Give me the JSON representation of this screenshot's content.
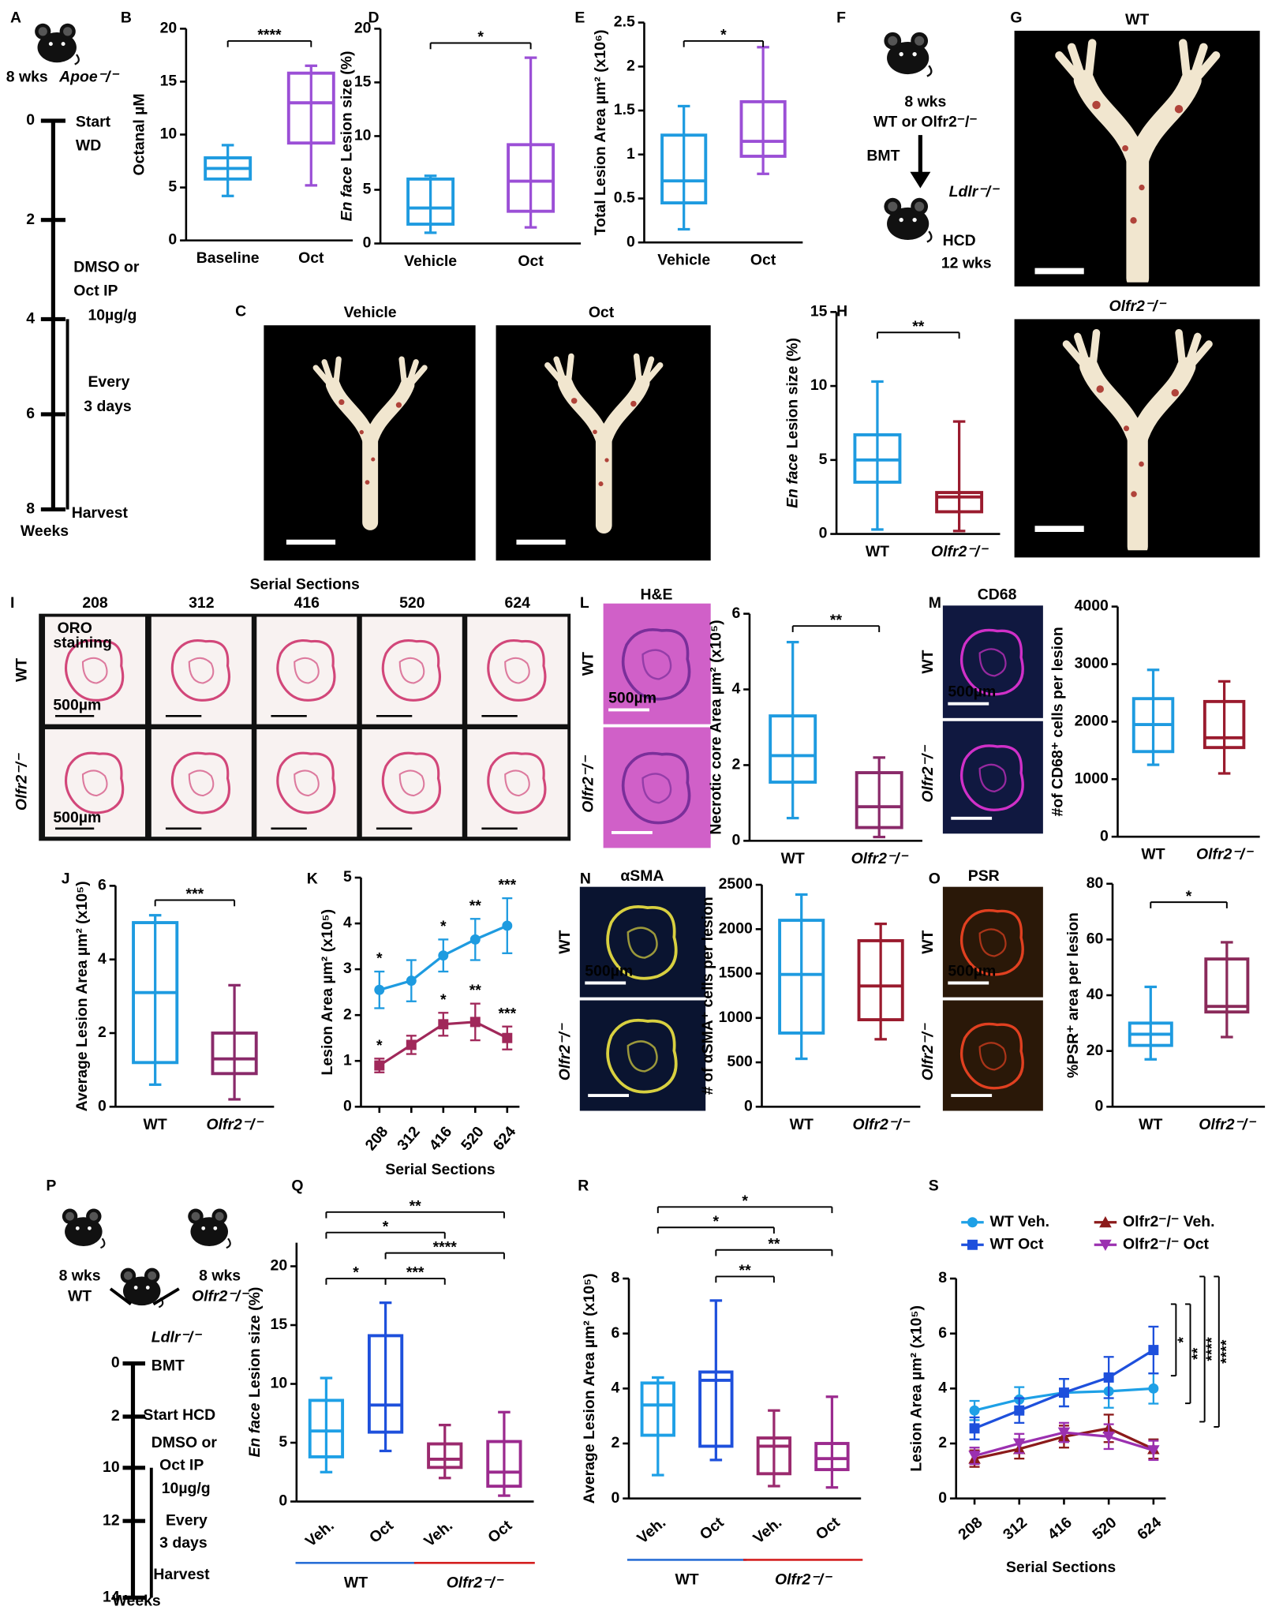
{
  "figure": {
    "panel_letters": [
      "A",
      "B",
      "C",
      "D",
      "E",
      "F",
      "G",
      "H",
      "I",
      "J",
      "K",
      "L",
      "M",
      "N",
      "O",
      "P",
      "Q",
      "R",
      "S"
    ],
    "a": {
      "age": "8 wks",
      "strain": "Apoe⁻/⁻",
      "ticks": [
        "0",
        "2",
        "4",
        "6",
        "8"
      ],
      "events": [
        "Start",
        "WD",
        "DMSO or",
        "Oct IP",
        "10µg/g",
        "Every",
        "3 days",
        "Harvest"
      ],
      "unit": "Weeks"
    },
    "c": [
      "Vehicle",
      "Oct"
    ],
    "f": [
      "8 wks",
      "WT or Olfr2⁻/⁻",
      "BMT",
      "Ldlr⁻/⁻",
      "HCD",
      "12 wks"
    ],
    "g": [
      "WT",
      "Olfr2⁻/⁻"
    ],
    "i": {
      "title": "Serial Sections",
      "sections": [
        "208",
        "312",
        "416",
        "520",
        "624"
      ],
      "rows": [
        "WT",
        "Olfr2⁻/⁻"
      ],
      "stain": [
        "ORO",
        "staining"
      ],
      "scale": [
        "500µm",
        "500µm"
      ]
    },
    "stains": [
      "H&E",
      "CD68",
      "αSMA",
      "PSR"
    ],
    "stain_rows": [
      "WT",
      "Olfr2⁻/⁻"
    ],
    "stain_scale": "500µm",
    "p": {
      "mice": [
        "8 wks",
        "WT",
        "8 wks",
        "Olfr2⁻/⁻",
        "Ldlr⁻/⁻"
      ],
      "ticks": [
        "0",
        "2",
        "10",
        "12",
        "14"
      ],
      "events": [
        "BMT",
        "Start HCD",
        "DMSO or",
        "Oct IP",
        "10µg/g",
        "Every",
        "3 days",
        "Harvest"
      ],
      "unit": "Weeks"
    }
  },
  "chart_data": [
    {
      "type": "box",
      "ylabel": "Octanal µM",
      "categories": [
        "Baseline",
        "Oct"
      ],
      "colors": [
        "#1e9be0",
        "#9b4fd6"
      ],
      "ylim": [
        0,
        20
      ],
      "yticks": [
        0,
        5,
        10,
        15,
        20
      ],
      "boxes": [
        {
          "min": 4.2,
          "q1": 5.8,
          "median": 6.8,
          "q3": 7.8,
          "max": 9
        },
        {
          "min": 5.2,
          "q1": 9.2,
          "median": 13,
          "q3": 15.8,
          "max": 16.5
        }
      ],
      "annotations": [
        "****"
      ]
    },
    {
      "type": "box",
      "ylabel_italic": "En face",
      "ylabel": "Lesion size (%)",
      "categories": [
        "Vehicle",
        "Oct"
      ],
      "colors": [
        "#1e9be0",
        "#9b4fd6"
      ],
      "ylim": [
        0,
        20
      ],
      "yticks": [
        0,
        5,
        10,
        15,
        20
      ],
      "boxes": [
        {
          "min": 1,
          "q1": 1.8,
          "median": 3.3,
          "q3": 6,
          "max": 6.3
        },
        {
          "min": 1.5,
          "q1": 3,
          "median": 5.8,
          "q3": 9.2,
          "max": 17.3
        }
      ],
      "annotations": [
        "*"
      ]
    },
    {
      "type": "box",
      "ylabel": "Total Lesion Area µm² (x10⁶)",
      "categories": [
        "Vehicle",
        "Oct"
      ],
      "colors": [
        "#1e9be0",
        "#9b4fd6"
      ],
      "ylim": [
        0,
        2.5
      ],
      "yticks": [
        0,
        0.5,
        1,
        1.5,
        2,
        2.5
      ],
      "boxes": [
        {
          "min": 0.15,
          "q1": 0.45,
          "median": 0.7,
          "q3": 1.22,
          "max": 1.55
        },
        {
          "min": 0.78,
          "q1": 0.98,
          "median": 1.15,
          "q3": 1.6,
          "max": 2.22
        }
      ],
      "annotations": [
        "*"
      ]
    },
    {
      "type": "box",
      "ylabel_italic": "En face",
      "ylabel": "Lesion size (%)",
      "categories": [
        "WT",
        "Olfr2⁻/⁻"
      ],
      "colors": [
        "#1e9be0",
        "#9a1b2e"
      ],
      "ylim": [
        0,
        15
      ],
      "yticks": [
        0,
        5,
        10,
        15
      ],
      "boxes": [
        {
          "min": 0.3,
          "q1": 3.5,
          "median": 5,
          "q3": 6.7,
          "max": 10.3
        },
        {
          "min": 0.2,
          "q1": 1.5,
          "median": 2.5,
          "q3": 2.8,
          "max": 7.6
        }
      ],
      "annotations": [
        "**"
      ]
    },
    {
      "type": "box",
      "ylabel": "Necrotic core Area µm² (x10⁵)",
      "categories": [
        "WT",
        "Olfr2⁻/⁻"
      ],
      "colors": [
        "#1e9be0",
        "#8a2a6a"
      ],
      "ylim": [
        0,
        6
      ],
      "yticks": [
        0,
        2,
        4,
        6
      ],
      "boxes": [
        {
          "min": 0.6,
          "q1": 1.55,
          "median": 2.25,
          "q3": 3.3,
          "max": 5.25
        },
        {
          "min": 0.1,
          "q1": 0.35,
          "median": 0.9,
          "q3": 1.8,
          "max": 2.2
        }
      ],
      "annotations": [
        "**"
      ]
    },
    {
      "type": "box",
      "ylabel": "#of CD68⁺ cells per lesion",
      "categories": [
        "WT",
        "Olfr2⁻/⁻"
      ],
      "colors": [
        "#1e9be0",
        "#9a1b2e"
      ],
      "ylim": [
        0,
        4000
      ],
      "yticks": [
        0,
        1000,
        2000,
        3000,
        4000
      ],
      "boxes": [
        {
          "min": 1250,
          "q1": 1480,
          "median": 1950,
          "q3": 2400,
          "max": 2900
        },
        {
          "min": 1100,
          "q1": 1550,
          "median": 1720,
          "q3": 2350,
          "max": 2700
        }
      ]
    },
    {
      "type": "box",
      "ylabel": "Average Lesion Area µm² (x10⁵)",
      "categories": [
        "WT",
        "Olfr2⁻/⁻"
      ],
      "colors": [
        "#1e9be0",
        "#8a2a6a"
      ],
      "ylim": [
        0,
        6
      ],
      "yticks": [
        0,
        2,
        4,
        6
      ],
      "boxes": [
        {
          "min": 0.6,
          "q1": 1.2,
          "median": 3.1,
          "q3": 5,
          "max": 5.2
        },
        {
          "min": 0.2,
          "q1": 0.9,
          "median": 1.3,
          "q3": 2,
          "max": 3.3
        }
      ],
      "annotations": [
        "***"
      ]
    },
    {
      "type": "line",
      "ylabel": "Lesion Area µm² (x10⁵)",
      "xlabel": "Serial Sections",
      "categories": [
        "208",
        "312",
        "416",
        "520",
        "624"
      ],
      "ylim": [
        0,
        5
      ],
      "yticks": [
        0,
        1,
        2,
        3,
        4,
        5
      ],
      "series": [
        {
          "color": "#1e9be0",
          "marker": "circle",
          "values": [
            2.55,
            2.75,
            3.3,
            3.65,
            3.95
          ],
          "errors": [
            0.4,
            0.45,
            0.35,
            0.45,
            0.6
          ]
        },
        {
          "color": "#a0285a",
          "marker": "square",
          "values": [
            0.9,
            1.35,
            1.8,
            1.85,
            1.5
          ],
          "errors": [
            0.15,
            0.2,
            0.25,
            0.4,
            0.25
          ]
        }
      ],
      "annotations": [
        "*",
        null,
        "*",
        "**",
        "***"
      ]
    },
    {
      "type": "box",
      "ylabel": "# of αSMA⁺ cells per lesion",
      "categories": [
        "WT",
        "Olfr2⁻/⁻"
      ],
      "colors": [
        "#1e9be0",
        "#9a1b2e"
      ],
      "ylim": [
        0,
        2500
      ],
      "yticks": [
        0,
        500,
        1000,
        1500,
        2000,
        2500
      ],
      "boxes": [
        {
          "min": 540,
          "q1": 830,
          "median": 1490,
          "q3": 2100,
          "max": 2390
        },
        {
          "min": 760,
          "q1": 980,
          "median": 1360,
          "q3": 1870,
          "max": 2060
        }
      ]
    },
    {
      "type": "box",
      "ylabel": "%PSR⁺ area per lesion",
      "categories": [
        "WT",
        "Olfr2⁻/⁻"
      ],
      "colors": [
        "#1e9be0",
        "#8a2a5a"
      ],
      "ylim": [
        0,
        80
      ],
      "yticks": [
        0,
        20,
        40,
        60,
        80
      ],
      "boxes": [
        {
          "min": 17,
          "q1": 22,
          "median": 26,
          "q3": 30,
          "max": 43
        },
        {
          "min": 25,
          "q1": 34,
          "median": 36,
          "q3": 53,
          "max": 59
        }
      ],
      "annotations": [
        "*"
      ]
    },
    {
      "type": "box",
      "ylabel_italic": "En face",
      "ylabel": "Lesion size (%)",
      "categories": [
        "Veh.",
        "Oct",
        "Veh.",
        "Oct"
      ],
      "colors": [
        "#1ea0e6",
        "#1e50dc",
        "#9b2a6e",
        "#9b2a8e"
      ],
      "ylim": [
        0,
        22
      ],
      "yticks": [
        0,
        5,
        10,
        15,
        20
      ],
      "groups": [
        "WT",
        "Olfr2⁻/⁻"
      ],
      "group_colors": [
        "#2a6fd6",
        "#d42020"
      ],
      "boxes": [
        {
          "min": 2.5,
          "q1": 3.8,
          "median": 6,
          "q3": 8.6,
          "max": 10.5
        },
        {
          "min": 4.3,
          "q1": 5.9,
          "median": 8.2,
          "q3": 14.1,
          "max": 16.9
        },
        {
          "min": 2,
          "q1": 2.9,
          "median": 3.6,
          "q3": 4.9,
          "max": 6.5
        },
        {
          "min": 0.5,
          "q1": 1.3,
          "median": 2.5,
          "q3": 5.1,
          "max": 7.6
        }
      ],
      "annotations": [
        "**",
        "*",
        "****",
        "*",
        "***"
      ]
    },
    {
      "type": "box",
      "ylabel": "Average Lesion Area µm² (x10⁵)",
      "categories": [
        "Veh.",
        "Oct",
        "Veh.",
        "Oct"
      ],
      "colors": [
        "#1ea0e6",
        "#1e50dc",
        "#9b2a6e",
        "#9b2a8e"
      ],
      "ylim": [
        0,
        8
      ],
      "yticks": [
        0,
        2,
        4,
        6,
        8
      ],
      "groups": [
        "WT",
        "Olfr2⁻/⁻"
      ],
      "group_colors": [
        "#2a6fd6",
        "#d42020"
      ],
      "boxes": [
        {
          "min": 0.85,
          "q1": 2.3,
          "median": 3.4,
          "q3": 4.2,
          "max": 4.4
        },
        {
          "min": 1.4,
          "q1": 1.9,
          "median": 4.3,
          "q3": 4.6,
          "max": 7.2
        },
        {
          "min": 0.45,
          "q1": 0.9,
          "median": 1.9,
          "q3": 2.2,
          "max": 3.2
        },
        {
          "min": 0.4,
          "q1": 1.05,
          "median": 1.45,
          "q3": 2,
          "max": 3.7
        }
      ],
      "annotations": [
        "*",
        "*",
        "**",
        "**"
      ]
    },
    {
      "type": "line",
      "ylabel": "Lesion Area µm² (x10⁵)",
      "xlabel": "Serial Sections",
      "categories": [
        "208",
        "312",
        "416",
        "520",
        "624"
      ],
      "ylim": [
        0,
        8
      ],
      "yticks": [
        0,
        2,
        4,
        6,
        8
      ],
      "series": [
        {
          "name": "WT Veh.",
          "color": "#1ea0e6",
          "marker": "circle",
          "values": [
            3.2,
            3.6,
            3.85,
            3.9,
            4
          ],
          "errors": [
            0.35,
            0.45,
            0.5,
            0.6,
            0.55
          ]
        },
        {
          "name": "WT Oct",
          "color": "#1e50dc",
          "marker": "square",
          "values": [
            2.55,
            3.2,
            3.85,
            4.4,
            5.4
          ],
          "errors": [
            0.4,
            0.45,
            0.5,
            0.75,
            0.85
          ]
        },
        {
          "name": "Olfr2⁻/⁻ Veh.",
          "color": "#8b1a1a",
          "marker": "triangle-up",
          "values": [
            1.45,
            1.8,
            2.25,
            2.55,
            1.8
          ],
          "errors": [
            0.3,
            0.35,
            0.4,
            0.5,
            0.35
          ]
        },
        {
          "name": "Olfr2⁻/⁻ Oct",
          "color": "#9b30b0",
          "marker": "triangle-down",
          "values": [
            1.55,
            2,
            2.4,
            2.25,
            1.75
          ],
          "errors": [
            0.3,
            0.35,
            0.35,
            0.45,
            0.35
          ]
        }
      ],
      "annotations": [
        "*",
        "**",
        "****",
        "****"
      ]
    }
  ]
}
